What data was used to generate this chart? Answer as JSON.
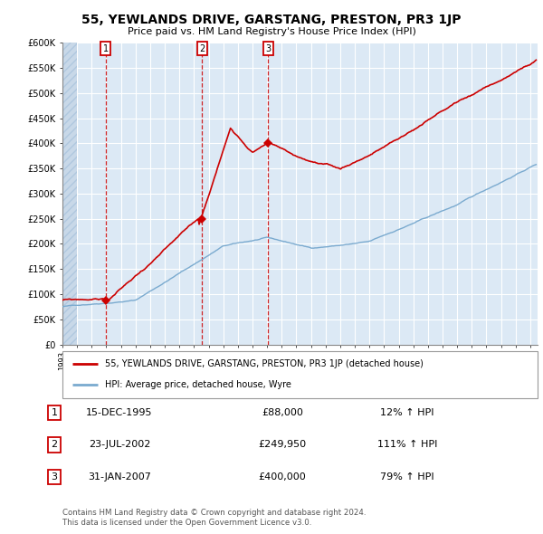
{
  "title": "55, YEWLANDS DRIVE, GARSTANG, PRESTON, PR3 1JP",
  "subtitle": "Price paid vs. HM Land Registry's House Price Index (HPI)",
  "ylim": [
    0,
    600000
  ],
  "xlim_start": 1993.0,
  "xlim_end": 2025.5,
  "sale_dates": [
    1995.96,
    2002.56,
    2007.08
  ],
  "sale_prices": [
    88000,
    249950,
    400000
  ],
  "sale_labels": [
    "1",
    "2",
    "3"
  ],
  "legend_entry1": "55, YEWLANDS DRIVE, GARSTANG, PRESTON, PR3 1JP (detached house)",
  "legend_entry2": "HPI: Average price, detached house, Wyre",
  "table_rows": [
    [
      "1",
      "15-DEC-1995",
      "£88,000",
      "12% ↑ HPI"
    ],
    [
      "2",
      "23-JUL-2002",
      "£249,950",
      "111% ↑ HPI"
    ],
    [
      "3",
      "31-JAN-2007",
      "£400,000",
      "79% ↑ HPI"
    ]
  ],
  "footnote1": "Contains HM Land Registry data © Crown copyright and database right 2024.",
  "footnote2": "This data is licensed under the Open Government Licence v3.0.",
  "property_color": "#cc0000",
  "hpi_color": "#7aaacf",
  "bg_color": "#dce9f5",
  "grid_color": "#ffffff",
  "hatch_fill": "#c8d8e8"
}
